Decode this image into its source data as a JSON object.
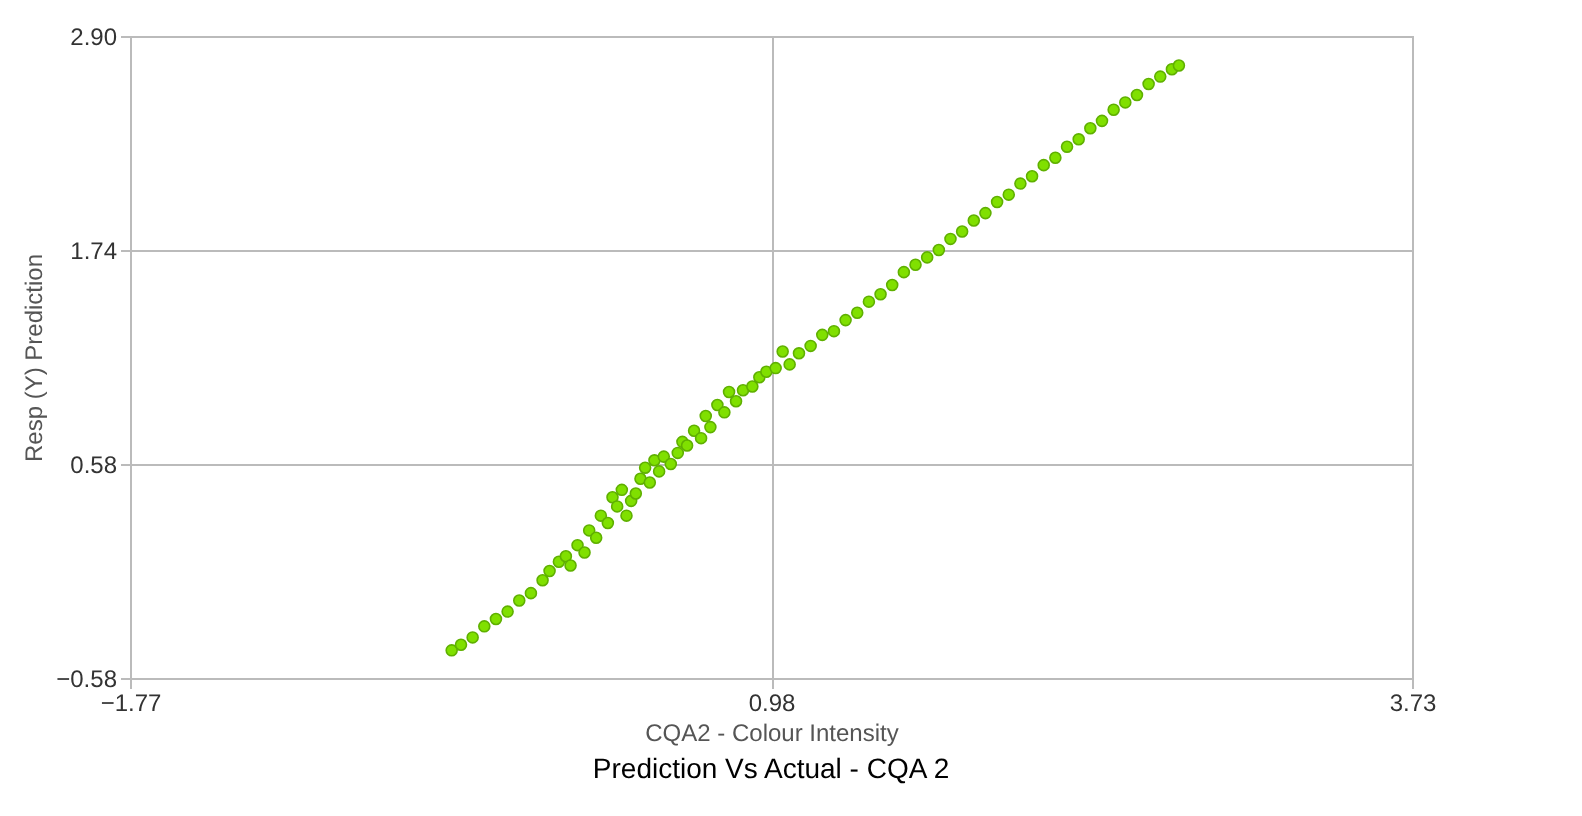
{
  "chart_data": {
    "type": "scatter",
    "title": "Prediction Vs Actual - CQA 2",
    "xlabel": "CQA2 - Colour Intensity",
    "ylabel": "Resp (Y) Prediction",
    "xlim": [
      -1.77,
      3.73
    ],
    "xticks": [
      -1.77,
      0.98,
      3.73
    ],
    "ylim": [
      -0.58,
      2.9
    ],
    "yticks": [
      -0.58,
      0.58,
      1.74,
      {
        "value": 2.9,
        "label": "2.90"
      }
    ],
    "grid": true,
    "marker": "circle",
    "series": [
      {
        "color": "#80e000",
        "x": [
          -0.39,
          -0.35,
          -0.3,
          -0.25,
          -0.2,
          -0.15,
          -0.1,
          -0.05,
          0.0,
          0.03,
          0.07,
          0.1,
          0.12,
          0.15,
          0.18,
          0.2,
          0.23,
          0.25,
          0.28,
          0.3,
          0.32,
          0.34,
          0.36,
          0.38,
          0.4,
          0.42,
          0.44,
          0.46,
          0.48,
          0.5,
          0.52,
          0.55,
          0.58,
          0.6,
          0.62,
          0.65,
          0.68,
          0.7,
          0.72,
          0.75,
          0.78,
          0.8,
          0.83,
          0.86,
          0.9,
          0.93,
          0.96,
          1.0,
          1.03,
          1.06,
          1.1,
          1.15,
          1.2,
          1.25,
          1.3,
          1.35,
          1.4,
          1.45,
          1.5,
          1.55,
          1.6,
          1.65,
          1.7,
          1.75,
          1.8,
          1.85,
          1.9,
          1.95,
          2.0,
          2.05,
          2.1,
          2.15,
          2.2,
          2.25,
          2.3,
          2.35,
          2.4,
          2.45,
          2.5,
          2.55,
          2.6,
          2.65,
          2.7,
          2.73
        ],
        "values": [
          -0.43,
          -0.4,
          -0.36,
          -0.3,
          -0.26,
          -0.22,
          -0.16,
          -0.12,
          -0.05,
          0.0,
          0.05,
          0.08,
          0.03,
          0.14,
          0.1,
          0.22,
          0.18,
          0.3,
          0.26,
          0.4,
          0.35,
          0.44,
          0.3,
          0.38,
          0.42,
          0.5,
          0.56,
          0.48,
          0.6,
          0.54,
          0.62,
          0.58,
          0.64,
          0.7,
          0.68,
          0.76,
          0.72,
          0.84,
          0.78,
          0.9,
          0.86,
          0.97,
          0.92,
          0.98,
          1.0,
          1.05,
          1.08,
          1.1,
          1.19,
          1.12,
          1.18,
          1.22,
          1.28,
          1.3,
          1.36,
          1.4,
          1.46,
          1.5,
          1.55,
          1.62,
          1.66,
          1.7,
          1.74,
          1.8,
          1.84,
          1.9,
          1.94,
          2.0,
          2.04,
          2.1,
          2.14,
          2.2,
          2.24,
          2.3,
          2.34,
          2.4,
          2.44,
          2.5,
          2.54,
          2.58,
          2.64,
          2.68,
          2.72,
          2.74
        ]
      }
    ]
  }
}
